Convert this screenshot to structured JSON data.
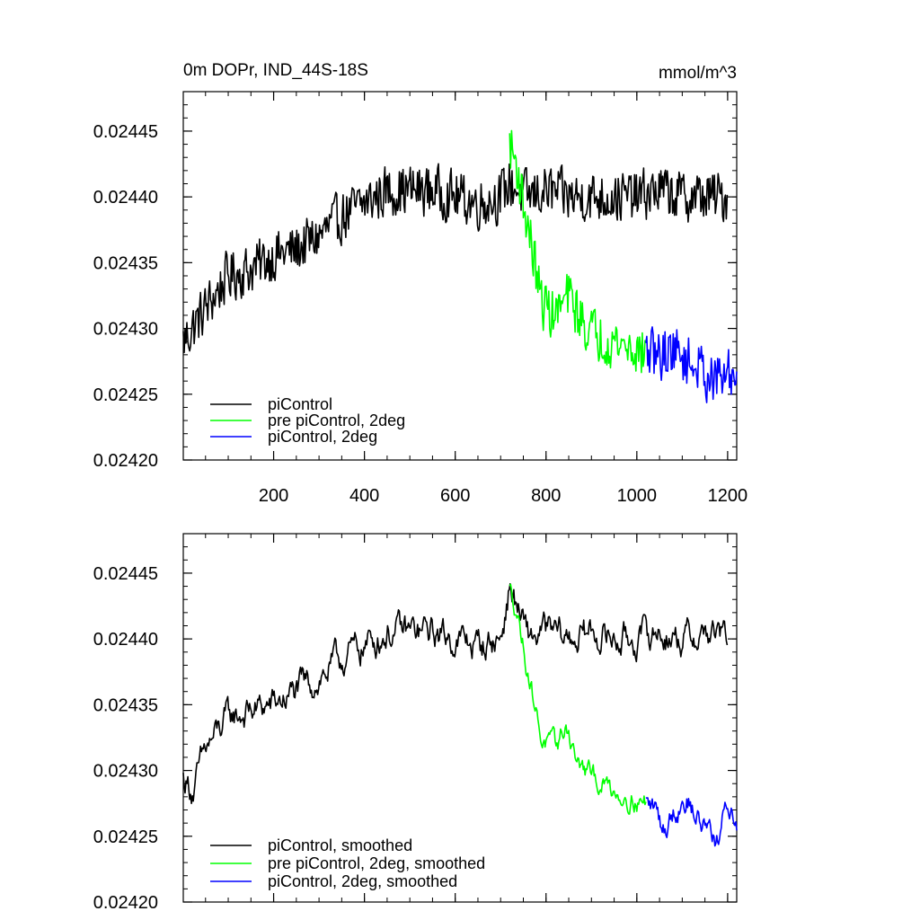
{
  "figure": {
    "title_left": "0m DOPr, IND_44S-18S",
    "title_right": "mmol/m^3"
  },
  "chart_data": [
    {
      "type": "line",
      "title": "0m DOPr, IND_44S-18S",
      "units": "mmol/m^3",
      "xlabel": "",
      "ylabel": "",
      "xlim": [
        1,
        1220
      ],
      "ylim": [
        0.0242,
        0.02448
      ],
      "xticks": [
        200,
        400,
        600,
        800,
        1000,
        1200
      ],
      "xtick_labels": [
        "200",
        "400",
        "600",
        "800",
        "1000",
        "1200"
      ],
      "yticks": [
        0.0242,
        0.02425,
        0.0243,
        0.02435,
        0.0244,
        0.02445
      ],
      "ytick_labels": [
        "0.02420",
        "0.02425",
        "0.02430",
        "0.02435",
        "0.02440",
        "0.02445"
      ],
      "legend_position": "bottom-left",
      "grid": false,
      "series": [
        {
          "name": "piControl",
          "color": "#000000",
          "noise": 1.85e-05,
          "x": [
            1,
            50,
            100,
            150,
            200,
            250,
            300,
            350,
            400,
            450,
            500,
            550,
            600,
            650,
            700,
            720,
            760,
            800,
            850,
            900,
            950,
            1000,
            1050,
            1100,
            1150,
            1200
          ],
          "values": [
            0.02429,
            0.024315,
            0.02434,
            0.024345,
            0.024355,
            0.02436,
            0.02437,
            0.024385,
            0.024395,
            0.024405,
            0.024405,
            0.024405,
            0.0244,
            0.024395,
            0.0244,
            0.02441,
            0.0244,
            0.024405,
            0.0244,
            0.0244,
            0.0244,
            0.0244,
            0.024405,
            0.0244,
            0.0244,
            0.0244
          ]
        },
        {
          "name": "pre piControl, 2deg",
          "color": "#00ff00",
          "noise": 1.85e-05,
          "x": [
            720,
            735,
            750,
            770,
            790,
            820,
            850,
            880,
            910,
            950,
            990,
            1020
          ],
          "values": [
            0.02444,
            0.024425,
            0.024395,
            0.02436,
            0.02432,
            0.02431,
            0.024325,
            0.024305,
            0.024295,
            0.02429,
            0.024285,
            0.02428
          ]
        },
        {
          "name": "piControl, 2deg",
          "color": "#0000ff",
          "noise": 1.85e-05,
          "x": [
            1020,
            1050,
            1080,
            1110,
            1140,
            1170,
            1200,
            1220
          ],
          "values": [
            0.02428,
            0.02428,
            0.024285,
            0.024275,
            0.02427,
            0.02426,
            0.024265,
            0.024265
          ]
        }
      ]
    },
    {
      "type": "line",
      "title": "",
      "xlabel": "",
      "ylabel": "",
      "xlim": [
        1,
        1220
      ],
      "ylim": [
        0.0242,
        0.02448
      ],
      "xticks": [
        200,
        400,
        600,
        800,
        1000,
        1200
      ],
      "yticks": [
        0.0242,
        0.02425,
        0.0243,
        0.02435,
        0.0244,
        0.02445
      ],
      "ytick_labels": [
        "0.02420",
        "0.02425",
        "0.02430",
        "0.02435",
        "0.02440",
        "0.02445"
      ],
      "legend_position": "bottom-left",
      "grid": false,
      "series": [
        {
          "name": "piControl, smoothed",
          "color": "#000000",
          "noise": 8.5e-06,
          "x": [
            1,
            25,
            50,
            100,
            150,
            200,
            250,
            300,
            350,
            400,
            450,
            500,
            550,
            600,
            650,
            700,
            720,
            760,
            800,
            850,
            900,
            950,
            1000,
            1050,
            1100,
            1150,
            1200
          ],
          "values": [
            0.024294,
            0.024285,
            0.024315,
            0.02434,
            0.024345,
            0.02435,
            0.02436,
            0.02437,
            0.024385,
            0.024395,
            0.024405,
            0.024405,
            0.024405,
            0.0244,
            0.024395,
            0.0244,
            0.02444,
            0.0244,
            0.024405,
            0.0244,
            0.024405,
            0.0244,
            0.0244,
            0.024405,
            0.0244,
            0.024405,
            0.0244
          ]
        },
        {
          "name": "pre piControl, 2deg, smoothed",
          "color": "#00ff00",
          "noise": 6e-06,
          "x": [
            720,
            735,
            750,
            770,
            790,
            820,
            845,
            870,
            900,
            950,
            990,
            1020
          ],
          "values": [
            0.024437,
            0.024425,
            0.024395,
            0.02436,
            0.024325,
            0.024315,
            0.024335,
            0.024305,
            0.024295,
            0.024285,
            0.02428,
            0.024275
          ]
        },
        {
          "name": "piControl, 2deg, smoothed",
          "color": "#0000ff",
          "noise": 7e-06,
          "x": [
            1020,
            1040,
            1060,
            1080,
            1110,
            1140,
            1160,
            1180,
            1200,
            1220
          ],
          "values": [
            0.024275,
            0.02427,
            0.024255,
            0.02427,
            0.02428,
            0.02426,
            0.02426,
            0.024245,
            0.024275,
            0.02426
          ]
        }
      ]
    }
  ]
}
